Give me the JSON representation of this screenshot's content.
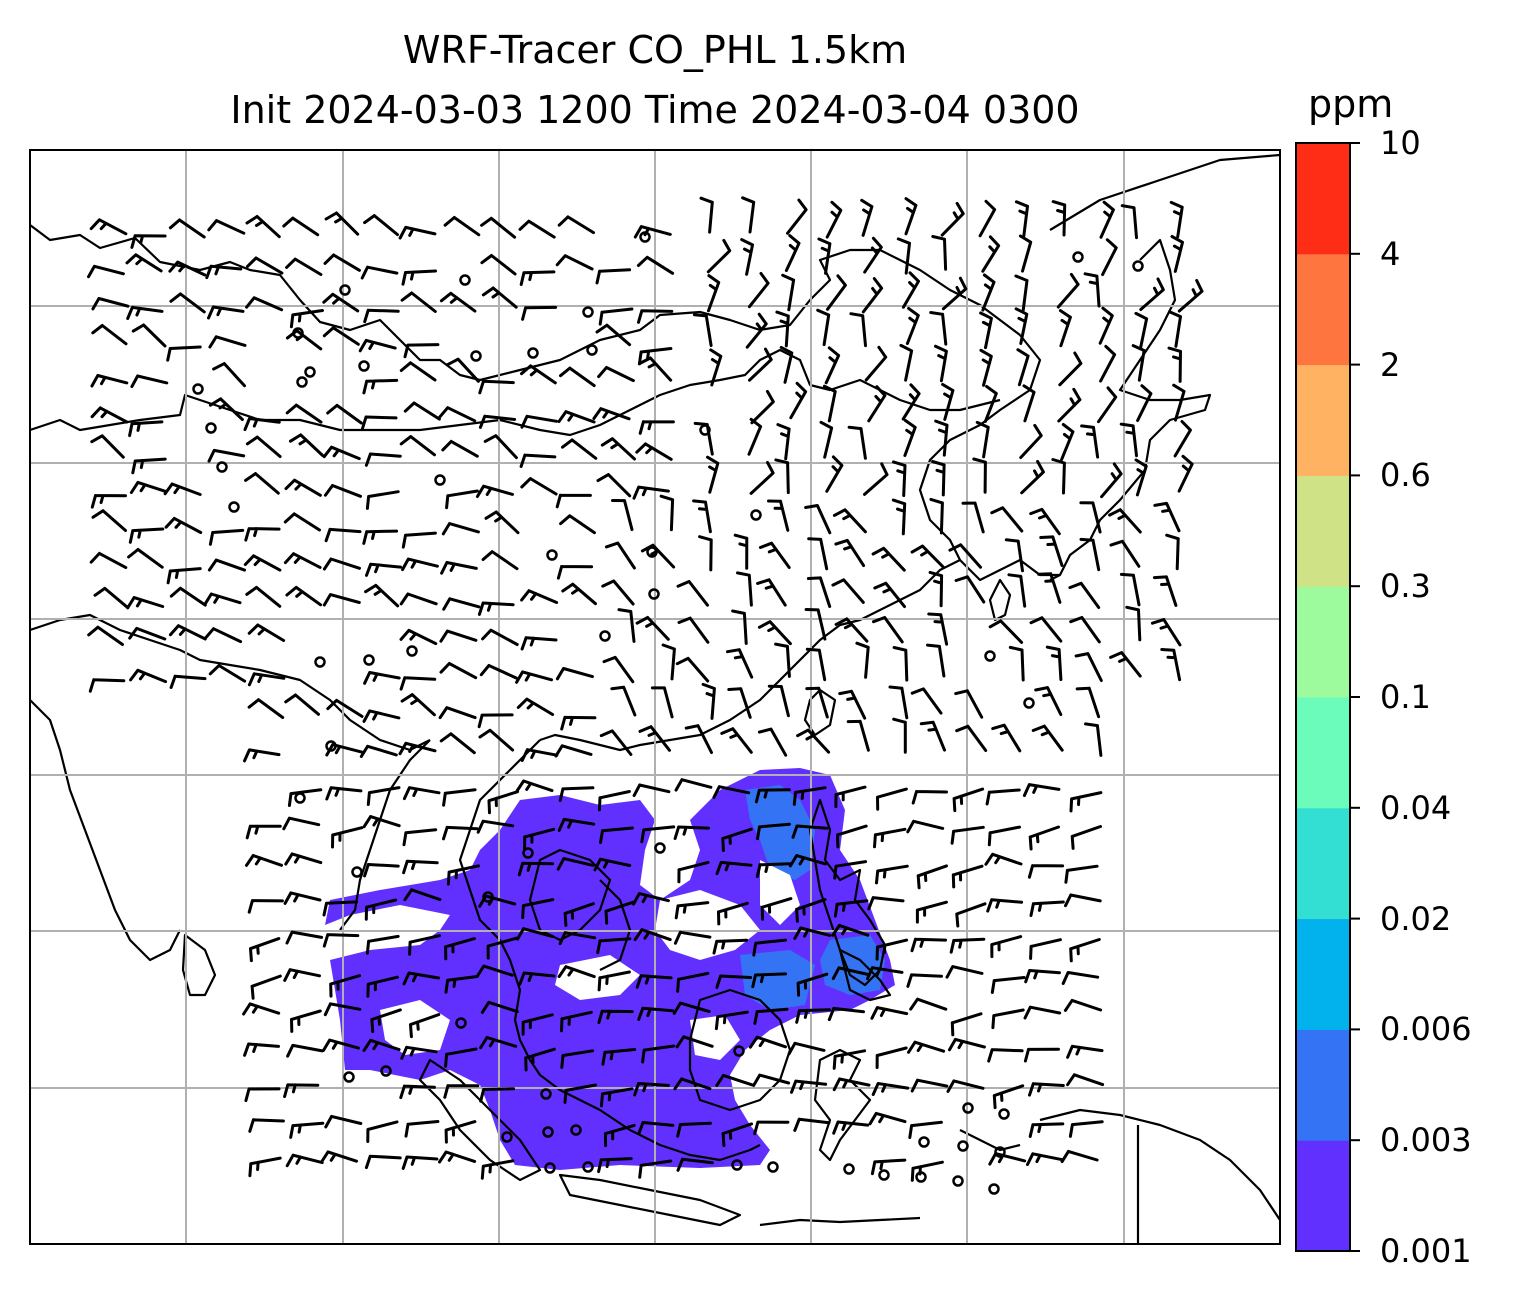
{
  "title": {
    "line1": "WRF-Tracer CO_PHL 1.5km",
    "line2": "Init 2024-03-03 1200 Time 2024-03-04 0300"
  },
  "colorbar": {
    "unit": "ppm",
    "tick_labels": [
      "0.001",
      "0.003",
      "0.006",
      "0.02",
      "0.04",
      "0.1",
      "0.3",
      "0.6",
      "2",
      "4",
      "10"
    ],
    "colors": [
      "#6130ff",
      "#3474f4",
      "#02b2ec",
      "#33dfd3",
      "#6bfbbb",
      "#9dfa9d",
      "#cfe285",
      "#ffb262",
      "#ff7540",
      "#ff2d15"
    ]
  },
  "map": {
    "background": "#ffffff",
    "grid_color": "#b0b0b0",
    "coastline_color": "#000000",
    "plume_color": "#6130ff",
    "plume_core_color": "#3474f4",
    "barb_color": "#000000"
  }
}
